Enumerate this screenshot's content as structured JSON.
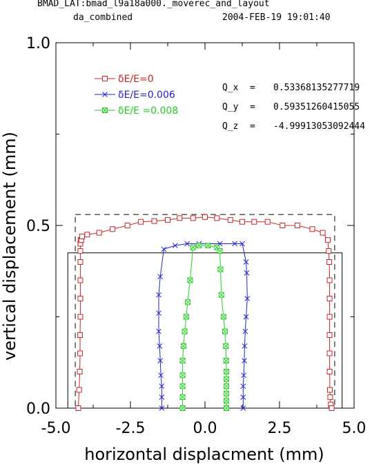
{
  "header": {
    "title": "BMAD_LAT:bmad_l9a18a000._moverec_and_layout",
    "subtitle": "da_combined",
    "timestamp": "2004-FEB-19  19:01:40"
  },
  "chart_data": {
    "type": "line",
    "xlabel": "horizontal displacment (mm)",
    "ylabel": "vertical displacement (mm)",
    "xlim": [
      -5.0,
      5.0
    ],
    "ylim": [
      0.0,
      1.0
    ],
    "xticks": [
      "-5.0",
      "-2.5",
      "0.0",
      "2.5",
      "5.0"
    ],
    "xtick_values": [
      -5.0,
      -2.5,
      0.0,
      2.5,
      5.0
    ],
    "yticks": [
      "0.0",
      "0.5",
      "1.0"
    ],
    "ytick_values": [
      0.0,
      0.5,
      1.0
    ],
    "legend_position": "top-left",
    "series": [
      {
        "name": "δE/E=0",
        "color": "#cc2222",
        "marker": "square",
        "x": [
          -4.25,
          -4.22,
          -4.2,
          -4.19,
          -4.19,
          -4.18,
          -4.18,
          -4.18,
          -4.18,
          -4.18,
          -4.18,
          -4.17,
          -4.15,
          -4.12,
          -3.95,
          -3.55,
          -3.1,
          -2.6,
          -2.15,
          -1.7,
          -1.25,
          -0.85,
          -0.4,
          0.0,
          0.4,
          0.85,
          1.25,
          1.65,
          2.1,
          2.6,
          3.1,
          3.6,
          3.95,
          4.12,
          4.15,
          4.17,
          4.18,
          4.18,
          4.18,
          4.18,
          4.18,
          4.18,
          4.19,
          4.2,
          4.22,
          4.25
        ],
        "y": [
          0.0,
          0.05,
          0.1,
          0.15,
          0.2,
          0.25,
          0.3,
          0.35,
          0.4,
          0.43,
          0.45,
          0.46,
          0.46,
          0.47,
          0.475,
          0.48,
          0.49,
          0.5,
          0.51,
          0.512,
          0.515,
          0.52,
          0.52,
          0.523,
          0.52,
          0.515,
          0.51,
          0.51,
          0.51,
          0.5,
          0.5,
          0.49,
          0.48,
          0.46,
          0.43,
          0.4,
          0.35,
          0.3,
          0.25,
          0.2,
          0.15,
          0.1,
          0.05,
          0.03,
          0.01,
          0.0
        ]
      },
      {
        "name": "δE/E=0.006",
        "color": "#2222cc",
        "marker": "x",
        "x": [
          -1.45,
          -1.45,
          -1.45,
          -1.48,
          -1.5,
          -1.52,
          -1.55,
          -1.55,
          -1.55,
          -1.5,
          -1.38,
          -1.0,
          -0.6,
          -0.2,
          0.5,
          1.0,
          1.25,
          1.38,
          1.4,
          1.42,
          1.38,
          1.35,
          1.33,
          1.32,
          1.3,
          1.28,
          1.28,
          1.28
        ],
        "y": [
          0.0,
          0.03,
          0.06,
          0.09,
          0.13,
          0.17,
          0.21,
          0.26,
          0.31,
          0.36,
          0.435,
          0.445,
          0.45,
          0.45,
          0.45,
          0.45,
          0.45,
          0.4,
          0.37,
          0.3,
          0.25,
          0.21,
          0.17,
          0.13,
          0.09,
          0.06,
          0.03,
          0.0
        ]
      },
      {
        "name": "δE/E =0.008",
        "color": "#22cc22",
        "marker": "boxed-x",
        "x": [
          -0.75,
          -0.75,
          -0.75,
          -0.75,
          -0.75,
          -0.72,
          -0.68,
          -0.63,
          -0.58,
          -0.5,
          -0.4,
          -0.2,
          0.1,
          0.4,
          0.5,
          0.52,
          0.55,
          0.62,
          0.67,
          0.7,
          0.71,
          0.72,
          0.72,
          0.72,
          0.72,
          0.72,
          0.72
        ],
        "y": [
          0.0,
          0.03,
          0.06,
          0.09,
          0.13,
          0.17,
          0.21,
          0.25,
          0.29,
          0.35,
          0.44,
          0.445,
          0.445,
          0.44,
          0.43,
          0.38,
          0.31,
          0.25,
          0.21,
          0.17,
          0.13,
          0.1,
          0.08,
          0.06,
          0.04,
          0.02,
          0.0
        ]
      }
    ],
    "boxes": [
      {
        "style": "dashed",
        "x": [
          -4.35,
          4.35
        ],
        "y": [
          0.0,
          0.53
        ]
      },
      {
        "style": "solid",
        "x": [
          -4.6,
          4.6
        ],
        "y": [
          0.0,
          0.425
        ]
      }
    ],
    "annotations": [
      {
        "label": "Q_x",
        "value": "0.53368135277719"
      },
      {
        "label": "Q_y",
        "value": "0.59351260415055"
      },
      {
        "label": "Q_z",
        "value": "-4.99913053092444"
      }
    ]
  }
}
